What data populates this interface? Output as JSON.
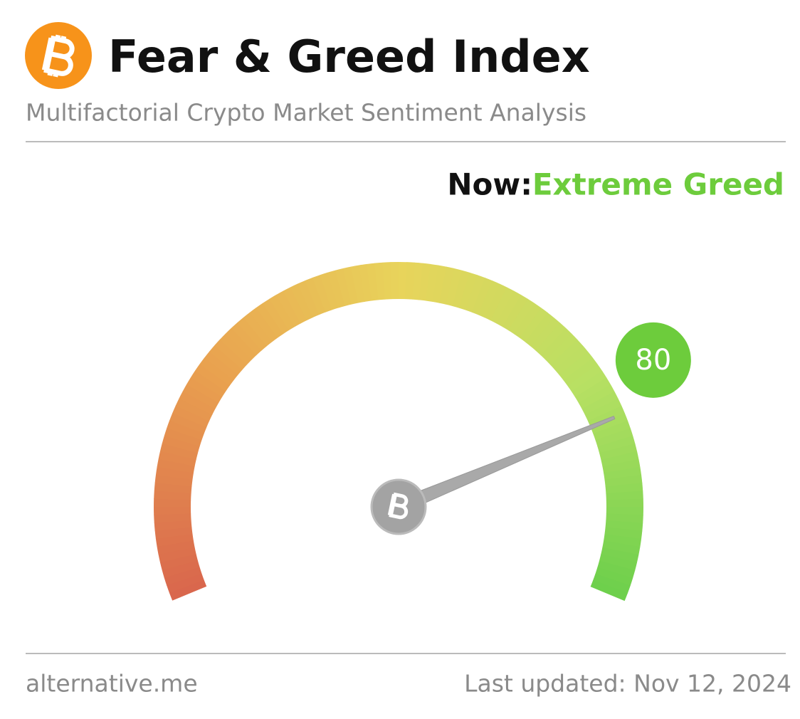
{
  "chart_data": {
    "type": "gauge",
    "title": "Fear & Greed Index",
    "subtitle": "Multifactorial Crypto Market Sentiment Analysis",
    "status_label": "Now:",
    "status": "Extreme Greed",
    "value": 80,
    "ylim": [
      0,
      100
    ],
    "color": "#6dcc3c",
    "source": "alternative.me",
    "updated": "Last updated: Nov 12, 2024"
  }
}
